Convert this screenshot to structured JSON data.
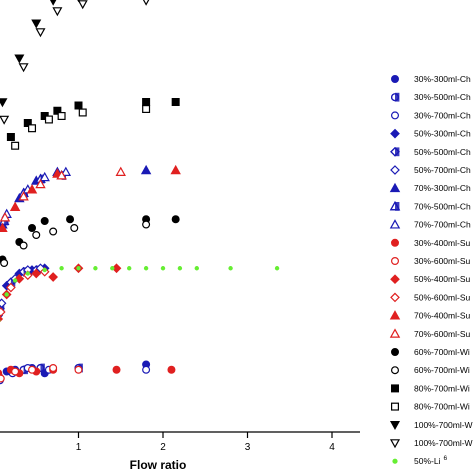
{
  "chart_data": {
    "type": "scatter",
    "xlabel": "Flow ratio",
    "ylabel": "",
    "xlim": [
      0,
      4
    ],
    "xticks": [
      "1",
      "2",
      "3",
      "4"
    ],
    "grid": false,
    "legend_position": "right",
    "series": [
      {
        "name": "30%-300ml-Ch",
        "marker": "circle",
        "fill": "filled",
        "color": "#1a1ab5",
        "points": [
          [
            0.03,
            24
          ],
          [
            0.15,
            26
          ],
          [
            0.25,
            27
          ],
          [
            0.45,
            28
          ],
          [
            1.8,
            30
          ],
          [
            0.6,
            25
          ]
        ]
      },
      {
        "name": "30%-500ml-Ch",
        "marker": "circle",
        "fill": "half",
        "color": "#1a1ab5",
        "points": [
          [
            0.05,
            22
          ],
          [
            0.2,
            26
          ],
          [
            0.35,
            27
          ],
          [
            0.55,
            28
          ],
          [
            1.0,
            28
          ]
        ]
      },
      {
        "name": "30%-700ml-Ch",
        "marker": "circle",
        "fill": "open",
        "color": "#1a1ab5",
        "points": [
          [
            0.07,
            21
          ],
          [
            0.22,
            25
          ],
          [
            0.4,
            28
          ],
          [
            0.65,
            27
          ],
          [
            1.8,
            27
          ]
        ]
      },
      {
        "name": "50%-300ml-Ch",
        "marker": "diamond",
        "fill": "filled",
        "color": "#1a1ab5",
        "points": [
          [
            0.05,
            58
          ],
          [
            0.15,
            75
          ],
          [
            0.3,
            82
          ],
          [
            0.45,
            84
          ],
          [
            0.6,
            85
          ]
        ]
      },
      {
        "name": "50%-500ml-Ch",
        "marker": "diamond",
        "fill": "half",
        "color": "#1a1ab5",
        "points": [
          [
            0.07,
            62
          ],
          [
            0.2,
            77
          ],
          [
            0.35,
            83
          ],
          [
            0.5,
            84
          ]
        ]
      },
      {
        "name": "50%-700ml-Ch",
        "marker": "diamond",
        "fill": "open",
        "color": "#1a1ab5",
        "points": [
          [
            0.09,
            65
          ],
          [
            0.25,
            79
          ],
          [
            0.4,
            84
          ],
          [
            0.55,
            85
          ]
        ]
      },
      {
        "name": "70%-300ml-Ch",
        "marker": "triangle",
        "fill": "filled",
        "color": "#1a1ab5",
        "points": [
          [
            0.1,
            110
          ],
          [
            0.3,
            125
          ],
          [
            0.5,
            135
          ],
          [
            0.75,
            140
          ],
          [
            1.8,
            141
          ]
        ]
      },
      {
        "name": "70%-500ml-Ch",
        "marker": "triangle",
        "fill": "half",
        "color": "#1a1ab5",
        "points": [
          [
            0.12,
            112
          ],
          [
            0.35,
            128
          ],
          [
            0.55,
            136
          ],
          [
            0.8,
            138
          ]
        ]
      },
      {
        "name": "70%-700ml-Ch",
        "marker": "triangle",
        "fill": "open",
        "color": "#1a1ab5",
        "points": [
          [
            0.15,
            116
          ],
          [
            0.4,
            130
          ],
          [
            0.6,
            137
          ],
          [
            0.85,
            140
          ]
        ]
      },
      {
        "name": "30%-400ml-Su",
        "marker": "circle",
        "fill": "filled",
        "color": "#e02020",
        "points": [
          [
            0.05,
            25
          ],
          [
            0.2,
            27
          ],
          [
            0.3,
            25
          ],
          [
            0.5,
            26
          ],
          [
            0.7,
            27
          ],
          [
            1.45,
            27
          ],
          [
            2.1,
            27
          ]
        ]
      },
      {
        "name": "30%-600ml-Su",
        "marker": "circle",
        "fill": "open",
        "color": "#e02020",
        "points": [
          [
            0.08,
            22
          ],
          [
            0.25,
            26
          ],
          [
            0.45,
            27
          ],
          [
            0.7,
            28
          ],
          [
            1.0,
            27
          ]
        ]
      },
      {
        "name": "50%-400ml-Su",
        "marker": "diamond",
        "fill": "filled",
        "color": "#e02020",
        "points": [
          [
            0.05,
            56
          ],
          [
            0.15,
            70
          ],
          [
            0.3,
            79
          ],
          [
            0.5,
            82
          ],
          [
            0.7,
            80
          ],
          [
            1.0,
            85
          ],
          [
            1.45,
            85
          ]
        ]
      },
      {
        "name": "50%-600ml-Su",
        "marker": "diamond",
        "fill": "open",
        "color": "#e02020",
        "points": [
          [
            0.08,
            60
          ],
          [
            0.2,
            74
          ],
          [
            0.4,
            81
          ],
          [
            0.6,
            83
          ]
        ]
      },
      {
        "name": "70%-400ml-Su",
        "marker": "triangle",
        "fill": "filled",
        "color": "#e02020",
        "points": [
          [
            0.1,
            108
          ],
          [
            0.25,
            120
          ],
          [
            0.45,
            130
          ],
          [
            0.75,
            139
          ],
          [
            2.15,
            141
          ]
        ]
      },
      {
        "name": "70%-600ml-Su",
        "marker": "triangle",
        "fill": "open",
        "color": "#e02020",
        "points": [
          [
            0.13,
            114
          ],
          [
            0.35,
            126
          ],
          [
            0.55,
            133
          ],
          [
            0.8,
            138
          ],
          [
            1.5,
            140
          ]
        ]
      },
      {
        "name": "60%-700ml-Wi",
        "marker": "circle",
        "fill": "filled",
        "color": "#000000",
        "points": [
          [
            0.1,
            90
          ],
          [
            0.3,
            100
          ],
          [
            0.45,
            108
          ],
          [
            0.6,
            112
          ],
          [
            0.9,
            113
          ],
          [
            1.8,
            113
          ],
          [
            2.15,
            113
          ]
        ]
      },
      {
        "name": "60%-700ml-Wi",
        "marker": "circle",
        "fill": "open",
        "color": "#000000",
        "points": [
          [
            0.12,
            88
          ],
          [
            0.35,
            98
          ],
          [
            0.5,
            104
          ],
          [
            0.7,
            106
          ],
          [
            0.95,
            108
          ],
          [
            1.8,
            110
          ]
        ]
      },
      {
        "name": "80%-700ml-Wi",
        "marker": "square",
        "fill": "filled",
        "color": "#000000",
        "points": [
          [
            0.2,
            160
          ],
          [
            0.4,
            168
          ],
          [
            0.6,
            172
          ],
          [
            0.75,
            175
          ],
          [
            1.0,
            178
          ],
          [
            1.8,
            180
          ],
          [
            2.15,
            180
          ]
        ]
      },
      {
        "name": "80%-700ml-Wi",
        "marker": "square",
        "fill": "open",
        "color": "#000000",
        "points": [
          [
            0.25,
            155
          ],
          [
            0.45,
            165
          ],
          [
            0.65,
            170
          ],
          [
            0.8,
            172
          ],
          [
            1.05,
            174
          ],
          [
            1.8,
            176
          ]
        ]
      },
      {
        "name": "100%-700ml-W",
        "marker": "triangle-down",
        "fill": "filled",
        "color": "#000000",
        "points": [
          [
            0.1,
            180
          ],
          [
            0.3,
            205
          ],
          [
            0.5,
            225
          ],
          [
            0.7,
            238
          ],
          [
            1.0,
            240
          ],
          [
            1.8,
            242
          ],
          [
            2.15,
            242
          ]
        ]
      },
      {
        "name": "100%-700ml-W",
        "marker": "triangle-down",
        "fill": "open",
        "color": "#000000",
        "points": [
          [
            0.12,
            170
          ],
          [
            0.35,
            200
          ],
          [
            0.55,
            220
          ],
          [
            0.75,
            232
          ],
          [
            1.05,
            236
          ],
          [
            1.8,
            238
          ]
        ]
      },
      {
        "name": "50%-Li",
        "superscript": "6",
        "marker": "circle",
        "fill": "filled",
        "color": "#66ee33",
        "points": [
          [
            0.05,
            55
          ],
          [
            0.15,
            70
          ],
          [
            0.25,
            78
          ],
          [
            0.4,
            82
          ],
          [
            0.6,
            84
          ],
          [
            0.8,
            85
          ],
          [
            1.0,
            85
          ],
          [
            1.2,
            85
          ],
          [
            1.4,
            85
          ],
          [
            1.6,
            85
          ],
          [
            1.8,
            85
          ],
          [
            2.0,
            85
          ],
          [
            2.2,
            85
          ],
          [
            2.4,
            85
          ],
          [
            2.8,
            85
          ],
          [
            3.35,
            85
          ]
        ]
      }
    ]
  }
}
